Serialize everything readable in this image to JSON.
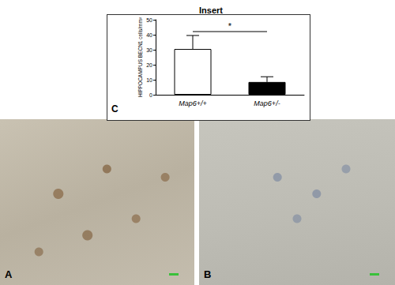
{
  "chart_data": {
    "type": "bar",
    "title": "Insert",
    "ylabel": "HIPPOCAMPUS BECN1 cells/mm²",
    "categories": [
      "Map6+/+",
      "Map6+/-"
    ],
    "values": [
      30.5,
      8.5
    ],
    "errors": [
      9,
      3.5
    ],
    "colors": [
      "#ffffff",
      "#000000"
    ],
    "ylim": [
      0,
      50
    ],
    "yticks": [
      0,
      10,
      20,
      30,
      40,
      50
    ],
    "grid": false,
    "annotations": [
      {
        "text": "*",
        "between": [
          "Map6+/+",
          "Map6+/-"
        ]
      }
    ]
  },
  "panels": {
    "chart": "C",
    "left_image": "A",
    "right_image": "B"
  }
}
